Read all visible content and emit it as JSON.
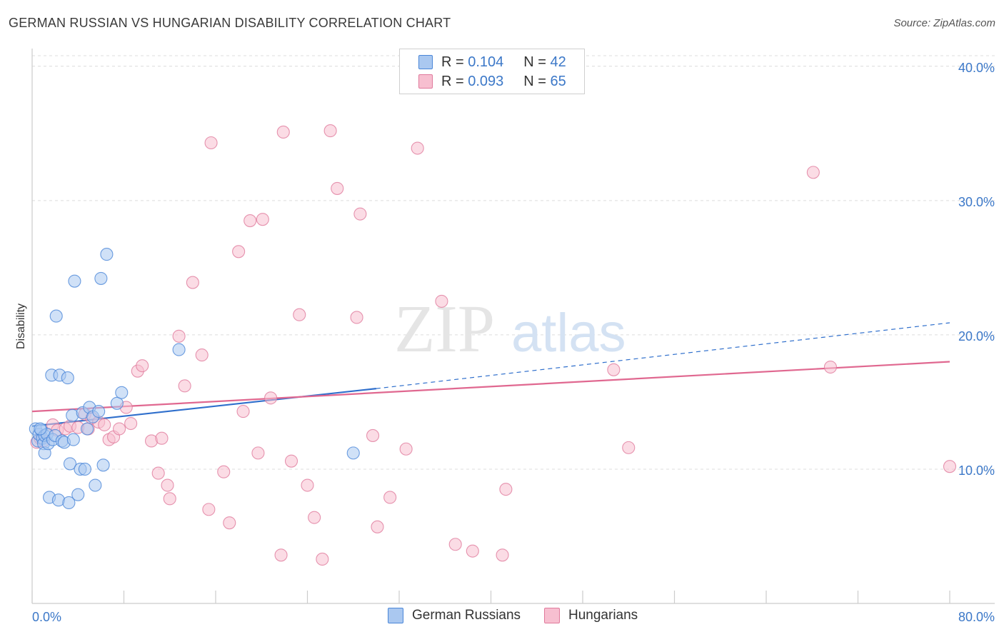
{
  "header": {
    "title": "GERMAN RUSSIAN VS HUNGARIAN DISABILITY CORRELATION CHART",
    "source": "Source: ZipAtlas.com"
  },
  "watermark": {
    "zip": "ZIP",
    "atlas": "atlas"
  },
  "legend": {
    "rows": [
      {
        "r_label": "R =",
        "r_value": "0.104",
        "n_label": "N =",
        "n_value": "42"
      },
      {
        "r_label": "R =",
        "r_value": "0.093",
        "n_label": "N =",
        "n_value": "65"
      }
    ]
  },
  "bottom_legend": {
    "series1": "German Russians",
    "series2": "Hungarians"
  },
  "colors": {
    "blue_fill": "#aac8f0",
    "blue_stroke": "#4a86d8",
    "blue_line": "#2f6fcc",
    "pink_fill": "#f7bfd0",
    "pink_stroke": "#e07a9c",
    "pink_line": "#e06890",
    "tick_text": "#3c78c8",
    "grid": "#dcdcdc"
  },
  "chart_data": {
    "type": "scatter",
    "title": "GERMAN RUSSIAN VS HUNGARIAN DISABILITY CORRELATION CHART",
    "xlabel": "",
    "ylabel": "Disability",
    "xlim": [
      0,
      80
    ],
    "ylim": [
      0,
      41
    ],
    "x_tick_labels": [
      "0.0%",
      "80.0%"
    ],
    "y_ticks": [
      10,
      20,
      30,
      40
    ],
    "y_tick_labels": [
      "10.0%",
      "20.0%",
      "30.0%",
      "40.0%"
    ],
    "grid": true,
    "legend_placement": "top-center",
    "series": [
      {
        "name": "German Russians",
        "r": 0.104,
        "n": 42,
        "trend": {
          "x0": 0,
          "y0": 13.2,
          "x1": 30,
          "y1": 16.0,
          "dashed_to_x": 80,
          "dashed_to_y": 20.9
        },
        "points": [
          [
            0.3,
            13.0
          ],
          [
            0.5,
            12.1
          ],
          [
            0.6,
            12.6
          ],
          [
            0.8,
            12.9
          ],
          [
            0.9,
            12.3
          ],
          [
            1.0,
            11.9
          ],
          [
            1.1,
            12.5
          ],
          [
            1.1,
            11.2
          ],
          [
            1.3,
            12.6
          ],
          [
            1.4,
            11.9
          ],
          [
            1.5,
            7.9
          ],
          [
            1.7,
            17.0
          ],
          [
            1.8,
            12.2
          ],
          [
            2.0,
            12.5
          ],
          [
            2.1,
            21.4
          ],
          [
            2.3,
            7.7
          ],
          [
            2.4,
            17.0
          ],
          [
            2.6,
            12.1
          ],
          [
            2.8,
            12.0
          ],
          [
            3.1,
            16.8
          ],
          [
            3.2,
            7.5
          ],
          [
            3.3,
            10.4
          ],
          [
            3.5,
            14.0
          ],
          [
            3.6,
            12.2
          ],
          [
            3.7,
            24.0
          ],
          [
            4.0,
            8.1
          ],
          [
            4.2,
            10.0
          ],
          [
            4.4,
            14.2
          ],
          [
            4.6,
            10.0
          ],
          [
            4.8,
            13.0
          ],
          [
            5.0,
            14.6
          ],
          [
            5.3,
            13.9
          ],
          [
            5.5,
            8.8
          ],
          [
            5.8,
            14.3
          ],
          [
            6.0,
            24.2
          ],
          [
            6.2,
            10.3
          ],
          [
            6.5,
            26.0
          ],
          [
            7.4,
            14.9
          ],
          [
            7.8,
            15.7
          ],
          [
            12.8,
            18.9
          ],
          [
            28.0,
            11.2
          ],
          [
            0.7,
            13.0
          ]
        ]
      },
      {
        "name": "Hungarians",
        "r": 0.093,
        "n": 65,
        "trend": {
          "x0": 0,
          "y0": 14.3,
          "x1": 80,
          "y1": 18.0
        },
        "points": [
          [
            0.4,
            12.0
          ],
          [
            0.7,
            12.3
          ],
          [
            1.0,
            12.1
          ],
          [
            1.8,
            13.3
          ],
          [
            2.2,
            12.9
          ],
          [
            2.9,
            13.0
          ],
          [
            3.3,
            13.2
          ],
          [
            4.0,
            13.1
          ],
          [
            4.6,
            14.1
          ],
          [
            4.9,
            13.0
          ],
          [
            5.2,
            13.8
          ],
          [
            5.8,
            13.5
          ],
          [
            6.3,
            13.3
          ],
          [
            6.7,
            12.2
          ],
          [
            7.1,
            12.4
          ],
          [
            7.6,
            13.0
          ],
          [
            8.2,
            14.6
          ],
          [
            8.6,
            13.4
          ],
          [
            9.2,
            17.3
          ],
          [
            9.6,
            17.7
          ],
          [
            10.4,
            12.1
          ],
          [
            11.0,
            9.7
          ],
          [
            11.3,
            12.3
          ],
          [
            11.8,
            8.8
          ],
          [
            12.0,
            7.8
          ],
          [
            12.8,
            19.9
          ],
          [
            13.3,
            16.2
          ],
          [
            14.0,
            23.9
          ],
          [
            14.8,
            18.5
          ],
          [
            15.4,
            7.0
          ],
          [
            15.6,
            34.3
          ],
          [
            16.7,
            9.8
          ],
          [
            17.2,
            6.0
          ],
          [
            18.0,
            26.2
          ],
          [
            18.4,
            14.3
          ],
          [
            19.0,
            28.5
          ],
          [
            19.7,
            11.2
          ],
          [
            20.1,
            28.6
          ],
          [
            20.8,
            15.3
          ],
          [
            21.7,
            3.6
          ],
          [
            21.9,
            35.1
          ],
          [
            22.6,
            10.6
          ],
          [
            23.3,
            21.5
          ],
          [
            24.0,
            8.8
          ],
          [
            24.6,
            6.4
          ],
          [
            25.3,
            3.3
          ],
          [
            26.0,
            35.2
          ],
          [
            26.6,
            30.9
          ],
          [
            28.3,
            21.3
          ],
          [
            28.6,
            29.0
          ],
          [
            29.7,
            12.5
          ],
          [
            30.1,
            5.7
          ],
          [
            31.2,
            7.9
          ],
          [
            32.6,
            11.5
          ],
          [
            33.6,
            33.9
          ],
          [
            35.7,
            22.5
          ],
          [
            36.9,
            4.4
          ],
          [
            38.4,
            3.9
          ],
          [
            41.0,
            3.6
          ],
          [
            41.3,
            8.5
          ],
          [
            50.7,
            17.4
          ],
          [
            52.0,
            11.6
          ],
          [
            68.1,
            32.1
          ],
          [
            69.6,
            17.6
          ],
          [
            80.0,
            10.2
          ]
        ]
      }
    ]
  }
}
